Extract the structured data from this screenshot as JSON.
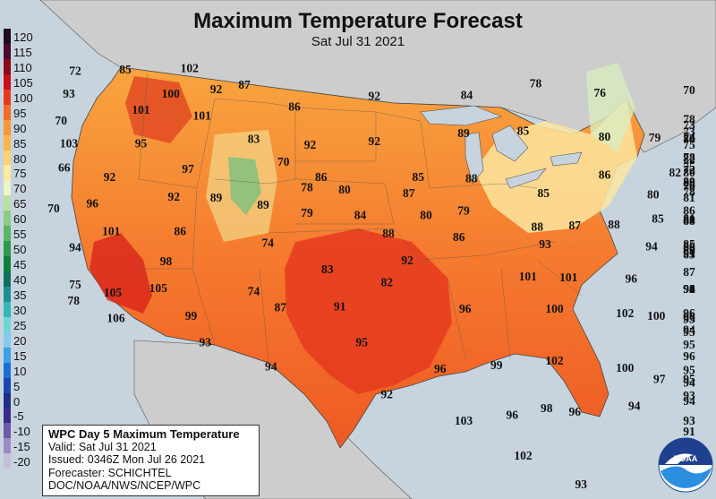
{
  "title": "Maximum Temperature Forecast",
  "subtitle": "Sat Jul 31 2021",
  "legend": [
    {
      "label": "120",
      "color": "#1d0b24"
    },
    {
      "label": "115",
      "color": "#4d0a2c"
    },
    {
      "label": "110",
      "color": "#8a0a1a"
    },
    {
      "label": "105",
      "color": "#c8101b"
    },
    {
      "label": "100",
      "color": "#e63a1f"
    },
    {
      "label": "95",
      "color": "#f46b2a"
    },
    {
      "label": "90",
      "color": "#f8973a"
    },
    {
      "label": "85",
      "color": "#fbb54e"
    },
    {
      "label": "80",
      "color": "#fdd274"
    },
    {
      "label": "75",
      "color": "#fdea9e"
    },
    {
      "label": "70",
      "color": "#eef3c8"
    },
    {
      "label": "65",
      "color": "#b9e0a8"
    },
    {
      "label": "60",
      "color": "#8ccc87"
    },
    {
      "label": "55",
      "color": "#5cb467"
    },
    {
      "label": "50",
      "color": "#2f9a4e"
    },
    {
      "label": "45",
      "color": "#0f7f3e"
    },
    {
      "label": "40",
      "color": "#0e6f5c"
    },
    {
      "label": "35",
      "color": "#1d8f8f"
    },
    {
      "label": "30",
      "color": "#35b8b3"
    },
    {
      "label": "25",
      "color": "#6fd6d6"
    },
    {
      "label": "20",
      "color": "#86c8ee"
    },
    {
      "label": "15",
      "color": "#3fa0e6"
    },
    {
      "label": "10",
      "color": "#1a70d6"
    },
    {
      "label": "5",
      "color": "#1d45b0"
    },
    {
      "label": "0",
      "color": "#1c2e85"
    },
    {
      "label": "-5",
      "color": "#3a2a8a"
    },
    {
      "label": "-10",
      "color": "#6a5aa8"
    },
    {
      "label": "-15",
      "color": "#9a8dc4"
    },
    {
      "label": "-20",
      "color": "#c5bedb"
    }
  ],
  "info": {
    "heading": "WPC Day 5 Maximum Temperature",
    "valid": "Valid: Sat Jul 31 2021",
    "issued": "Issued: 0346Z Mon Jul 26 2021",
    "forecaster": "Forecaster: SCHICHTEL",
    "agency": "DOC/NOAA/NWS/NCEP/WPC"
  },
  "logo_text": "NOAA",
  "forecast_values": [
    {
      "v": "72",
      "lon": -123.6,
      "lat": 48.6
    },
    {
      "v": "85",
      "lon": -120.4,
      "lat": 48.7
    },
    {
      "v": "102",
      "lon": -116.3,
      "lat": 48.8
    },
    {
      "v": "93",
      "lon": -124.0,
      "lat": 46.6
    },
    {
      "v": "100",
      "lon": -117.5,
      "lat": 46.6
    },
    {
      "v": "92",
      "lon": -114.6,
      "lat": 47.0
    },
    {
      "v": "87",
      "lon": -112.8,
      "lat": 47.4
    },
    {
      "v": "70",
      "lon": -69.6,
      "lat": 46.9
    },
    {
      "v": "70",
      "lon": -124.5,
      "lat": 44.3
    },
    {
      "v": "101",
      "lon": -119.4,
      "lat": 45.2
    },
    {
      "v": "101",
      "lon": -115.5,
      "lat": 44.7
    },
    {
      "v": "86",
      "lon": -109.6,
      "lat": 45.5
    },
    {
      "v": "92",
      "lon": -104.5,
      "lat": 46.4
    },
    {
      "v": "84",
      "lon": -98.6,
      "lat": 46.5
    },
    {
      "v": "78",
      "lon": -94.2,
      "lat": 47.5
    },
    {
      "v": "76",
      "lon": -90.1,
      "lat": 46.7
    },
    {
      "v": "73",
      "lon": -72.1,
      "lat": 43.9
    },
    {
      "v": "78",
      "lon": -69.5,
      "lat": 44.4
    },
    {
      "v": "103",
      "lon": -124.0,
      "lat": 42.3
    },
    {
      "v": "95",
      "lon": -119.4,
      "lat": 42.3
    },
    {
      "v": "83",
      "lon": -112.2,
      "lat": 42.7
    },
    {
      "v": "92",
      "lon": -108.6,
      "lat": 42.2
    },
    {
      "v": "92",
      "lon": -104.5,
      "lat": 42.5
    },
    {
      "v": "89",
      "lon": -98.8,
      "lat": 43.2
    },
    {
      "v": "85",
      "lon": -95.0,
      "lat": 43.4
    },
    {
      "v": "80",
      "lon": -89.8,
      "lat": 42.9
    },
    {
      "v": "79",
      "lon": -86.6,
      "lat": 42.8
    },
    {
      "v": "80",
      "lon": -81.3,
      "lat": 42.7
    },
    {
      "v": "73",
      "lon": -76.0,
      "lat": 43.3
    },
    {
      "v": "75",
      "lon": -73.8,
      "lat": 42.2
    },
    {
      "v": "74",
      "lon": -71.3,
      "lat": 42.7
    },
    {
      "v": "74",
      "lon": -69.8,
      "lat": 42.9
    },
    {
      "v": "66",
      "lon": -124.3,
      "lat": 40.2
    },
    {
      "v": "97",
      "lon": -116.4,
      "lat": 40.1
    },
    {
      "v": "70",
      "lon": -110.3,
      "lat": 40.7
    },
    {
      "v": "86",
      "lon": -107.9,
      "lat": 39.4
    },
    {
      "v": "85",
      "lon": -101.7,
      "lat": 39.4
    },
    {
      "v": "88",
      "lon": -98.3,
      "lat": 39.3
    },
    {
      "v": "86",
      "lon": -89.8,
      "lat": 39.6
    },
    {
      "v": "82",
      "lon": -85.3,
      "lat": 39.8
    },
    {
      "v": "80",
      "lon": -81.5,
      "lat": 39.8
    },
    {
      "v": "75",
      "lon": -77.7,
      "lat": 40.3
    },
    {
      "v": "72",
      "lon": -76.5,
      "lat": 40.0
    },
    {
      "v": "78",
      "lon": -73.2,
      "lat": 41.1
    },
    {
      "v": "82",
      "lon": -71.5,
      "lat": 41.0
    },
    {
      "v": "92",
      "lon": -121.4,
      "lat": 39.4
    },
    {
      "v": "92",
      "lon": -117.3,
      "lat": 37.7
    },
    {
      "v": "89",
      "lon": -114.6,
      "lat": 37.6
    },
    {
      "v": "78",
      "lon": -108.8,
      "lat": 38.5
    },
    {
      "v": "80",
      "lon": -106.4,
      "lat": 38.3
    },
    {
      "v": "87",
      "lon": -102.3,
      "lat": 38.0
    },
    {
      "v": "85",
      "lon": -93.7,
      "lat": 38.0
    },
    {
      "v": "80",
      "lon": -86.7,
      "lat": 37.9
    },
    {
      "v": "81",
      "lon": -84.3,
      "lat": 37.6
    },
    {
      "v": "79",
      "lon": -81.1,
      "lat": 38.6
    },
    {
      "v": "80",
      "lon": -79.2,
      "lat": 39.0
    },
    {
      "v": "78",
      "lon": -78.0,
      "lat": 38.7
    },
    {
      "v": "78",
      "lon": -76.0,
      "lat": 38.1
    },
    {
      "v": "83",
      "lon": -73.9,
      "lat": 38.9
    },
    {
      "v": "70",
      "lon": -125.5,
      "lat": 36.7
    },
    {
      "v": "96",
      "lon": -122.5,
      "lat": 37.1
    },
    {
      "v": "89",
      "lon": -111.6,
      "lat": 37.0
    },
    {
      "v": "79",
      "lon": -108.8,
      "lat": 36.3
    },
    {
      "v": "84",
      "lon": -105.4,
      "lat": 36.1
    },
    {
      "v": "80",
      "lon": -101.2,
      "lat": 36.1
    },
    {
      "v": "79",
      "lon": -98.8,
      "lat": 36.5
    },
    {
      "v": "88",
      "lon": -94.1,
      "lat": 35.1
    },
    {
      "v": "87",
      "lon": -91.7,
      "lat": 35.2
    },
    {
      "v": "88",
      "lon": -89.2,
      "lat": 35.3
    },
    {
      "v": "85",
      "lon": -86.4,
      "lat": 35.8
    },
    {
      "v": "80",
      "lon": -79.5,
      "lat": 35.7
    },
    {
      "v": "81",
      "lon": -76.9,
      "lat": 35.8
    },
    {
      "v": "86",
      "lon": -73.6,
      "lat": 36.5
    },
    {
      "v": "88",
      "lon": -73.6,
      "lat": 35.6
    },
    {
      "v": "101",
      "lon": -121.3,
      "lat": 34.7
    },
    {
      "v": "86",
      "lon": -116.9,
      "lat": 34.7
    },
    {
      "v": "74",
      "lon": -111.3,
      "lat": 33.7
    },
    {
      "v": "88",
      "lon": -103.6,
      "lat": 34.5
    },
    {
      "v": "86",
      "lon": -99.1,
      "lat": 34.2
    },
    {
      "v": "93",
      "lon": -93.6,
      "lat": 33.6
    },
    {
      "v": "94",
      "lon": -86.8,
      "lat": 33.4
    },
    {
      "v": "91",
      "lon": -82.7,
      "lat": 32.8
    },
    {
      "v": "89",
      "lon": -80.2,
      "lat": 33.0
    },
    {
      "v": "88",
      "lon": -79.3,
      "lat": 33.3
    },
    {
      "v": "85",
      "lon": -75.9,
      "lat": 33.6
    },
    {
      "v": "88",
      "lon": -73.0,
      "lat": 33.0
    },
    {
      "v": "86",
      "lon": -71.5,
      "lat": 33.4
    },
    {
      "v": "83",
      "lon": -69.7,
      "lat": 32.7
    },
    {
      "v": "94",
      "lon": -123.6,
      "lat": 33.3
    },
    {
      "v": "98",
      "lon": -117.8,
      "lat": 32.1
    },
    {
      "v": "83",
      "lon": -107.5,
      "lat": 31.4
    },
    {
      "v": "92",
      "lon": -102.4,
      "lat": 32.2
    },
    {
      "v": "101",
      "lon": -94.7,
      "lat": 30.8
    },
    {
      "v": "101",
      "lon": -92.1,
      "lat": 30.7
    },
    {
      "v": "75",
      "lon": -123.6,
      "lat": 30.1
    },
    {
      "v": "105",
      "lon": -121.2,
      "lat": 29.4
    },
    {
      "v": "105",
      "lon": -118.3,
      "lat": 29.8
    },
    {
      "v": "74",
      "lon": -112.2,
      "lat": 29.5
    },
    {
      "v": "82",
      "lon": -103.7,
      "lat": 30.3
    },
    {
      "v": "96",
      "lon": -88.1,
      "lat": 30.6
    },
    {
      "v": "94",
      "lon": -80.4,
      "lat": 29.7
    },
    {
      "v": "92",
      "lon": -77.5,
      "lat": 29.7
    },
    {
      "v": "91",
      "lon": -74.0,
      "lat": 29.7
    },
    {
      "v": "87",
      "lon": -71.2,
      "lat": 31.2
    },
    {
      "v": "90",
      "lon": -69.0,
      "lat": 29.7
    },
    {
      "v": "78",
      "lon": -123.7,
      "lat": 28.7
    },
    {
      "v": "87",
      "lon": -110.5,
      "lat": 28.1
    },
    {
      "v": "91",
      "lon": -106.7,
      "lat": 28.2
    },
    {
      "v": "96",
      "lon": -98.7,
      "lat": 28.0
    },
    {
      "v": "100",
      "lon": -93.0,
      "lat": 28.0
    },
    {
      "v": "102",
      "lon": -88.5,
      "lat": 27.6
    },
    {
      "v": "100",
      "lon": -86.5,
      "lat": 27.4
    },
    {
      "v": "96",
      "lon": -83.3,
      "lat": 27.6
    },
    {
      "v": "93",
      "lon": -76.5,
      "lat": 27.1
    },
    {
      "v": "96",
      "lon": -73.4,
      "lat": 27.3
    },
    {
      "v": "93",
      "lon": -70.7,
      "lat": 27.1
    },
    {
      "v": "106",
      "lon": -121.0,
      "lat": 27.2
    },
    {
      "v": "99",
      "lon": -116.2,
      "lat": 27.4
    },
    {
      "v": "94",
      "lon": -79.5,
      "lat": 26.2
    },
    {
      "v": "95",
      "lon": -75.5,
      "lat": 26.0
    },
    {
      "v": "93",
      "lon": -115.3,
      "lat": 25.1
    },
    {
      "v": "95",
      "lon": -105.3,
      "lat": 25.1
    },
    {
      "v": "95",
      "lon": -79.2,
      "lat": 24.9
    },
    {
      "v": "96",
      "lon": -83.4,
      "lat": 23.9
    },
    {
      "v": "94",
      "lon": -111.1,
      "lat": 23.0
    },
    {
      "v": "96",
      "lon": -100.3,
      "lat": 22.8
    },
    {
      "v": "99",
      "lon": -96.7,
      "lat": 23.1
    },
    {
      "v": "102",
      "lon": -93.0,
      "lat": 23.5
    },
    {
      "v": "100",
      "lon": -88.5,
      "lat": 22.9
    },
    {
      "v": "95",
      "lon": -73.3,
      "lat": 22.7
    },
    {
      "v": "97",
      "lon": -86.3,
      "lat": 21.9
    },
    {
      "v": "94",
      "lon": -81.8,
      "lat": 21.6
    },
    {
      "v": "95",
      "lon": -76.4,
      "lat": 21.9
    },
    {
      "v": "92",
      "lon": -103.7,
      "lat": 20.6
    },
    {
      "v": "93",
      "lon": -69.9,
      "lat": 20.5
    },
    {
      "v": "94",
      "lon": -83.1,
      "lat": 20.0
    },
    {
      "v": "94",
      "lon": -87.9,
      "lat": 19.6
    },
    {
      "v": "98",
      "lon": -93.5,
      "lat": 19.4
    },
    {
      "v": "96",
      "lon": -91.7,
      "lat": 19.1
    },
    {
      "v": "96",
      "lon": -95.7,
      "lat": 18.8
    },
    {
      "v": "103",
      "lon": -98.8,
      "lat": 18.3
    },
    {
      "v": "93",
      "lon": -72.2,
      "lat": 18.3
    },
    {
      "v": "91",
      "lon": -68.9,
      "lat": 17.4
    },
    {
      "v": "92",
      "lon": -70.5,
      "lat": 16.4
    },
    {
      "v": "91",
      "lon": -68.6,
      "lat": 15.9
    },
    {
      "v": "102",
      "lon": -95.0,
      "lat": 15.3
    },
    {
      "v": "89",
      "lon": -70.9,
      "lat": 12.7
    },
    {
      "v": "93",
      "lon": -91.3,
      "lat": 12.2
    }
  ]
}
